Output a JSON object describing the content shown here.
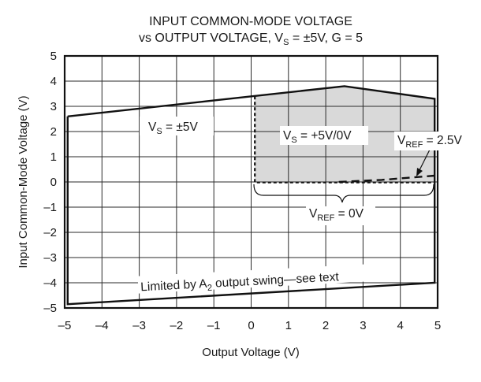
{
  "chart_data": {
    "type": "line",
    "title": "INPUT COMMON-MODE VOLTAGE",
    "subtitle_parts": [
      "vs OUTPUT VOLTAGE, V",
      "S",
      " = ±5V, G = 5"
    ],
    "subtitle": "vs OUTPUT VOLTAGE, VS = ±5V, G = 5",
    "xlabel": "Output Voltage (V)",
    "ylabel": "Input Common-Mode Voltage (V)",
    "xlim": [
      -5,
      5
    ],
    "ylim": [
      -5,
      5
    ],
    "grid": true,
    "x_ticks": [
      "–5",
      "–4",
      "–3",
      "–2",
      "–1",
      "0",
      "1",
      "2",
      "3",
      "4",
      "5"
    ],
    "y_ticks": [
      "5",
      "4",
      "3",
      "2",
      "1",
      "0",
      "–1",
      "–2",
      "–3",
      "–4",
      "–5"
    ],
    "series": [
      {
        "name": "VS = ±5V",
        "style": "solid",
        "closed": true,
        "points": [
          [
            -4.92,
            2.6
          ],
          [
            2.5,
            3.8
          ],
          [
            4.92,
            3.3
          ],
          [
            4.92,
            -4.0
          ],
          [
            -4.92,
            -4.85
          ],
          [
            -4.92,
            2.6
          ]
        ]
      },
      {
        "name": "VS = +5V/0V (VREF = 0V)",
        "style": "dotted",
        "fill": "#d9d9d9",
        "points": [
          [
            0.1,
            3.4
          ],
          [
            2.5,
            3.8
          ],
          [
            4.92,
            3.3
          ],
          [
            4.92,
            -0.02
          ],
          [
            0.1,
            -0.02
          ],
          [
            0.1,
            3.4
          ]
        ]
      },
      {
        "name": "VREF = 2.5V",
        "style": "dashed",
        "points": [
          [
            2.35,
            0.0
          ],
          [
            3.5,
            0.08
          ],
          [
            4.92,
            0.25
          ]
        ]
      }
    ],
    "annotations": [
      {
        "text_parts": [
          "V",
          "S",
          " = ±5V"
        ],
        "x": -3.1,
        "y": 2.0
      },
      {
        "text_parts": [
          "V",
          "S",
          " = +5V/0V"
        ],
        "x": 1.9,
        "y": 1.9
      },
      {
        "text_parts": [
          "V",
          "REF",
          " = 2.5V"
        ],
        "x": 4.0,
        "y": 1.6
      },
      {
        "text_parts": [
          "V",
          "REF",
          " = 0V"
        ],
        "x": 2.2,
        "y": -1.3
      },
      {
        "text_parts": [
          "Limited by A",
          "2",
          " output swing—see text"
        ],
        "x": 0.0,
        "y": -3.9,
        "rotation": -3
      }
    ]
  },
  "colors": {
    "line": "#111111",
    "grid": "#2a2a2a",
    "shade": "#d9d9d9",
    "background": "#ffffff"
  }
}
